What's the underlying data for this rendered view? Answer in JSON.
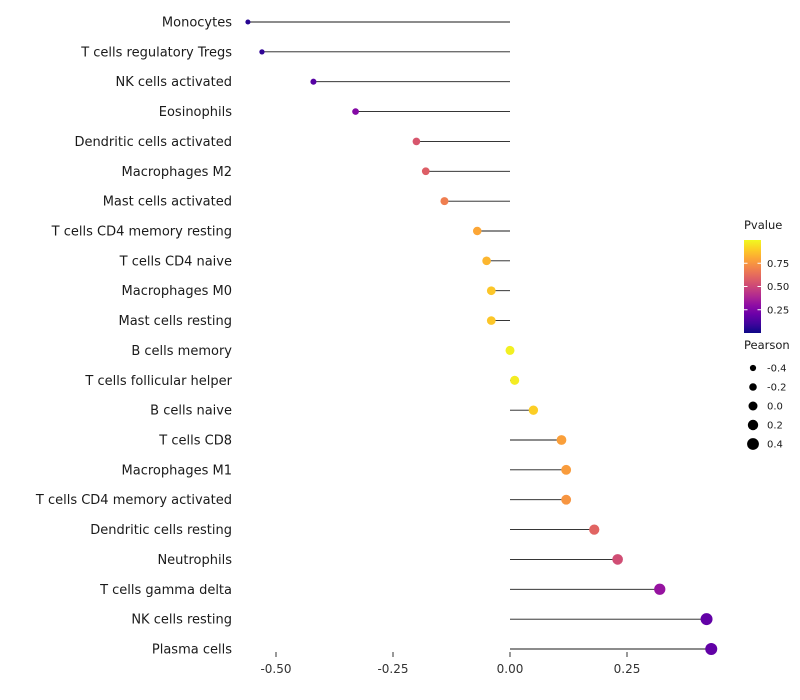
{
  "figure": {
    "background": "#ffffff",
    "stem_color": "#1a1a1a",
    "axis_text_color": "#333333",
    "label_text_color": "#1a1a1a"
  },
  "chart_data": {
    "type": "lollipop",
    "title": "",
    "xlabel": "",
    "ylabel": "",
    "grid": false,
    "xlim": [
      -0.62,
      0.52
    ],
    "x_ticks": [
      -0.5,
      -0.25,
      0,
      0.25
    ],
    "x_tick_labels": [
      "-0.50",
      "-0.25",
      "0.00",
      "0.25"
    ],
    "points": [
      {
        "label": "Monocytes",
        "pearson": -0.56,
        "pvalue": 0.05
      },
      {
        "label": "T cells regulatory  Tregs",
        "pearson": -0.53,
        "pvalue": 0.07
      },
      {
        "label": "NK cells activated",
        "pearson": -0.42,
        "pvalue": 0.15
      },
      {
        "label": "Eosinophils",
        "pearson": -0.33,
        "pvalue": 0.27
      },
      {
        "label": "Dendritic cells activated",
        "pearson": -0.2,
        "pvalue": 0.55
      },
      {
        "label": "Macrophages M2",
        "pearson": -0.18,
        "pvalue": 0.58
      },
      {
        "label": "Mast cells activated",
        "pearson": -0.14,
        "pvalue": 0.68
      },
      {
        "label": "T cells CD4 memory resting",
        "pearson": -0.07,
        "pvalue": 0.8
      },
      {
        "label": "T cells CD4 naive",
        "pearson": -0.05,
        "pvalue": 0.84
      },
      {
        "label": "Macrophages M0",
        "pearson": -0.04,
        "pvalue": 0.88
      },
      {
        "label": "Mast cells resting",
        "pearson": -0.04,
        "pvalue": 0.88
      },
      {
        "label": "B cells memory",
        "pearson": 0.0,
        "pvalue": 0.98
      },
      {
        "label": "T cells follicular helper",
        "pearson": 0.01,
        "pvalue": 0.97
      },
      {
        "label": "B cells naive",
        "pearson": 0.05,
        "pvalue": 0.9
      },
      {
        "label": "T cells CD8",
        "pearson": 0.11,
        "pvalue": 0.78
      },
      {
        "label": "Macrophages M1",
        "pearson": 0.12,
        "pvalue": 0.77
      },
      {
        "label": "T cells CD4 memory activated",
        "pearson": 0.12,
        "pvalue": 0.75
      },
      {
        "label": "Dendritic cells resting",
        "pearson": 0.18,
        "pvalue": 0.6
      },
      {
        "label": "Neutrophils",
        "pearson": 0.23,
        "pvalue": 0.52
      },
      {
        "label": "T cells gamma delta",
        "pearson": 0.32,
        "pvalue": 0.32
      },
      {
        "label": "NK cells resting",
        "pearson": 0.42,
        "pvalue": 0.18
      },
      {
        "label": "Plasma cells",
        "pearson": 0.43,
        "pvalue": 0.18
      }
    ],
    "color_legend": {
      "title": "Pvalue",
      "ticks": [
        0.75,
        0.5,
        0.25
      ],
      "tick_labels": [
        "0.75",
        "0.50",
        "0.25"
      ],
      "range": [
        0,
        1
      ],
      "colormap": "plasma",
      "colormap_stops": [
        "#0d0887",
        "#41049d",
        "#6a00a8",
        "#8f0da4",
        "#b12a90",
        "#cc4778",
        "#e16462",
        "#f2844b",
        "#fca636",
        "#fcce25",
        "#f0f921"
      ]
    },
    "size_legend": {
      "title": "Pearson",
      "ticks": [
        -0.4,
        -0.2,
        0.0,
        0.2,
        0.4
      ],
      "tick_labels": [
        "-0.4",
        "-0.2",
        "0.0",
        "0.2",
        "0.4"
      ],
      "dot_color": "#000000"
    }
  }
}
